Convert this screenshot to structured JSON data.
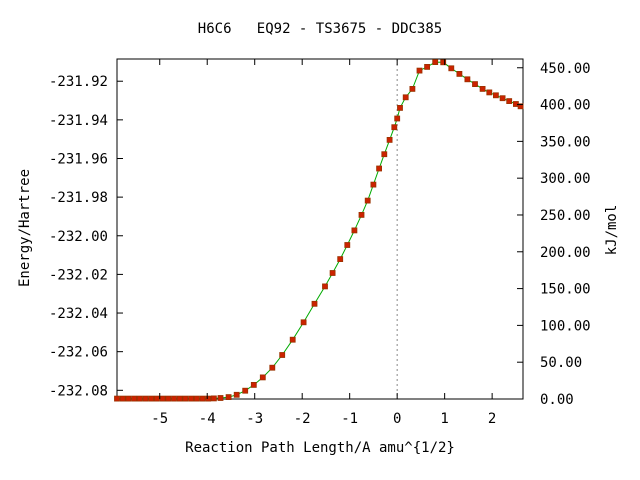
{
  "chart_data": {
    "type": "line",
    "title": "H6C6   EQ92 - TS3675 - DDC385",
    "xlabel": "Reaction Path Length/A amu^{1/2}",
    "ylabel": "Energy/Hartree",
    "y2label": "kJ/mol",
    "xlim": [
      -5.9,
      2.65
    ],
    "ylim": [
      -232.0845,
      -231.9085
    ],
    "y2lim": [
      0,
      461.9
    ],
    "x_ticks": [
      -5,
      -4,
      -3,
      -2,
      -1,
      0,
      1,
      2
    ],
    "x_tick_labels": [
      "-5",
      "-4",
      "-3",
      "-2",
      "-1",
      "0",
      "1",
      "2"
    ],
    "y_ticks": [
      -231.92,
      -231.94,
      -231.96,
      -231.98,
      -232.0,
      -232.02,
      -232.04,
      -232.06,
      -232.08
    ],
    "y_tick_labels": [
      "-231.92",
      "-231.94",
      "-231.96",
      "-231.98",
      "-232.00",
      "-232.02",
      "-232.04",
      "-232.06",
      "-232.08"
    ],
    "y2_ticks": [
      0,
      50,
      100,
      150,
      200,
      250,
      300,
      350,
      400,
      450
    ],
    "y2_tick_labels": [
      "0.00",
      "50.00",
      "100.00",
      "150.00",
      "200.00",
      "250.00",
      "300.00",
      "350.00",
      "400.00",
      "450.00"
    ],
    "ts_line_x": 0,
    "grid": false,
    "colors": {
      "line": "#00aa00",
      "marker_fill": "#cc2200",
      "marker_edge": "#993300",
      "ts_line": "#888888"
    },
    "series": [
      {
        "x": [
          -5.9,
          -5.78,
          -5.66,
          -5.54,
          -5.42,
          -5.3,
          -5.18,
          -5.06,
          -4.94,
          -4.82,
          -4.7,
          -4.58,
          -4.46,
          -4.34,
          -4.22,
          -4.1,
          -3.98,
          -3.86,
          -3.72,
          -3.55,
          -3.38,
          -3.2,
          -3.02,
          -2.83,
          -2.63,
          -2.42,
          -2.2,
          -1.97,
          -1.74,
          -1.52,
          -1.36,
          -1.2,
          -1.05,
          -0.9,
          -0.75,
          -0.62,
          -0.5,
          -0.38,
          -0.27,
          -0.16,
          -0.06,
          0.0,
          0.06,
          0.18,
          0.32,
          0.47,
          0.63,
          0.8,
          0.97,
          1.14,
          1.31,
          1.48,
          1.64,
          1.8,
          1.94,
          2.08,
          2.22,
          2.36,
          2.5,
          2.6
        ],
        "y": [
          -232.0843,
          -232.0843,
          -232.0843,
          -232.0843,
          -232.0843,
          -232.0843,
          -232.0843,
          -232.0843,
          -232.0843,
          -232.0843,
          -232.0843,
          -232.0843,
          -232.0843,
          -232.0843,
          -232.0843,
          -232.0843,
          -232.0843,
          -232.0842,
          -232.084,
          -232.0835,
          -232.0823,
          -232.0802,
          -232.0772,
          -232.0733,
          -232.0683,
          -232.0617,
          -232.0538,
          -232.0448,
          -232.0352,
          -232.0262,
          -232.0193,
          -232.0121,
          -232.0048,
          -231.9972,
          -231.9892,
          -231.9818,
          -231.9735,
          -231.9652,
          -231.9578,
          -231.9504,
          -231.9438,
          -231.9393,
          -231.9338,
          -231.9283,
          -231.924,
          -231.9145,
          -231.9126,
          -231.9101,
          -231.9102,
          -231.9133,
          -231.9162,
          -231.919,
          -231.9215,
          -231.924,
          -231.9258,
          -231.9273,
          -231.9288,
          -231.9303,
          -231.9318,
          -231.933
        ]
      }
    ]
  }
}
